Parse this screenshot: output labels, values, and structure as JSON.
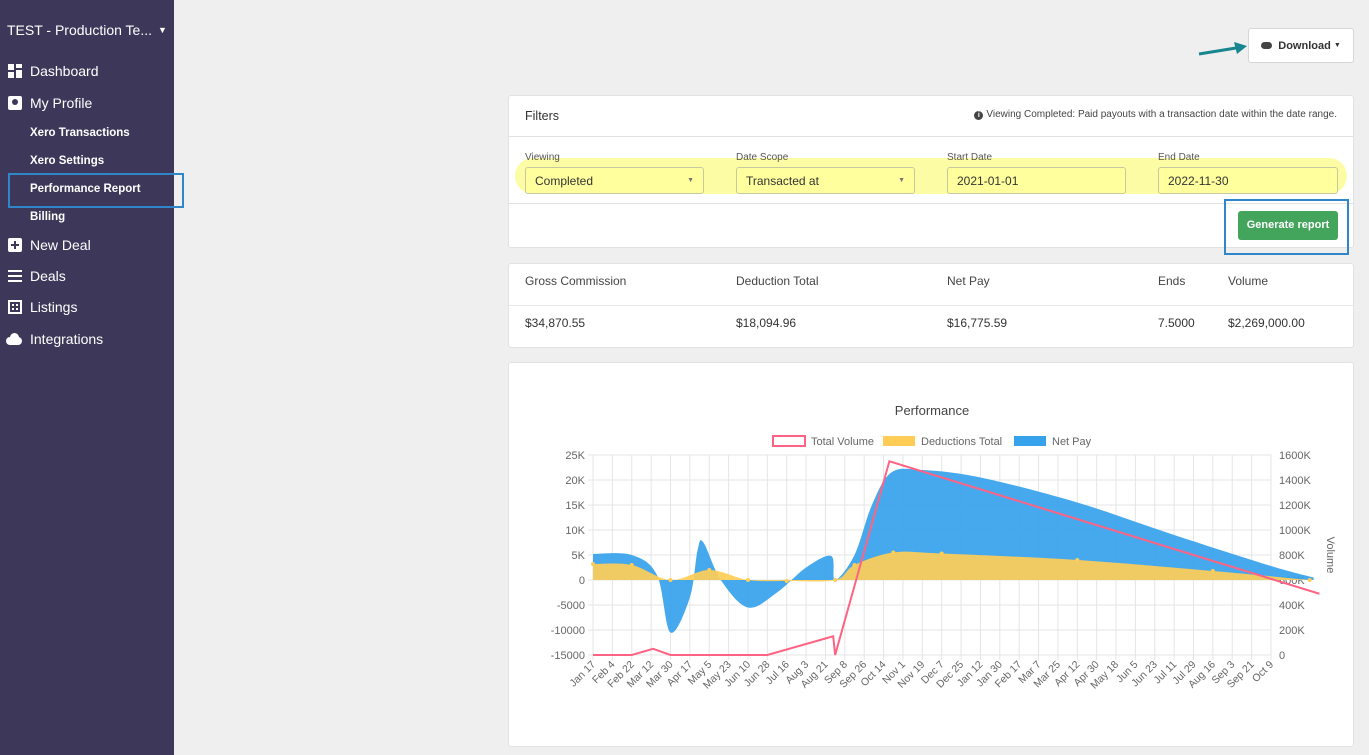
{
  "sidebar": {
    "org_name": "TEST - Production Te...",
    "nav": {
      "dashboard": "Dashboard",
      "my_profile": "My Profile",
      "xero_transactions": "Xero Transactions",
      "xero_settings": "Xero Settings",
      "performance_report": "Performance Report",
      "billing": "Billing",
      "new_deal": "New Deal",
      "deals": "Deals",
      "listings": "Listings",
      "integrations": "Integrations"
    }
  },
  "toolbar": {
    "download_label": "Download"
  },
  "filters": {
    "title": "Filters",
    "info": "Viewing Completed: Paid payouts with a transaction date within the date range.",
    "viewing": {
      "label": "Viewing",
      "value": "Completed"
    },
    "date_scope": {
      "label": "Date Scope",
      "value": "Transacted at"
    },
    "start_date": {
      "label": "Start Date",
      "value": "2021-01-01"
    },
    "end_date": {
      "label": "End Date",
      "value": "2022-11-30"
    },
    "generate_label": "Generate report",
    "highlight_color": "#fcfca0"
  },
  "summary": {
    "headers": [
      "Gross Commission",
      "Deduction Total",
      "Net Pay",
      "Ends",
      "Volume"
    ],
    "values": [
      "$34,870.55",
      "$18,094.96",
      "$16,775.59",
      "7.5000",
      "$2,269,000.00"
    ]
  },
  "colors": {
    "sidebar_bg": "#3d3859",
    "accent_blue": "#2f86c8",
    "generate_green": "#43a45c",
    "net_pay": "#36a2eb",
    "deductions": "#ffcd56",
    "total_volume": "#ff6384"
  },
  "chart_data": {
    "type": "area",
    "title": "Performance",
    "ylabel_right": "Volume",
    "y_left_ticks": [
      "25K",
      "20K",
      "15K",
      "10K",
      "5K",
      "0",
      "-5000",
      "-10000",
      "-15000"
    ],
    "y_right_ticks": [
      "1600K",
      "1400K",
      "1200K",
      "1000K",
      "800K",
      "600K",
      "400K",
      "200K",
      "0"
    ],
    "ylim_left": [
      -15000,
      25000
    ],
    "ylim_right": [
      0,
      1600000
    ],
    "x_ticks": [
      "Jan 17",
      "Feb 4",
      "Feb 22",
      "Mar 12",
      "Mar 30",
      "Apr 17",
      "May 5",
      "May 23",
      "Jun 10",
      "Jun 28",
      "Jul 16",
      "Aug 3",
      "Aug 21",
      "Sep 8",
      "Sep 26",
      "Oct 14",
      "Nov 1",
      "Nov 19",
      "Dec 7",
      "Dec 25",
      "Jan 12",
      "Jan 30",
      "Feb 17",
      "Mar 7",
      "Mar 25",
      "Apr 12",
      "Apr 30",
      "May 18",
      "Jun 5",
      "Jun 23",
      "Jul 11",
      "Jul 29",
      "Aug 16",
      "Sep 3",
      "Sep 21",
      "Oct 9"
    ],
    "legend_position": "top",
    "grid": true,
    "series": [
      {
        "name": "Total Volume",
        "axis": "right",
        "style": "line",
        "color": "#ff6384",
        "points": [
          [
            0,
            0
          ],
          [
            2,
            0
          ],
          [
            3.1,
            50000
          ],
          [
            4,
            0
          ],
          [
            9,
            0
          ],
          [
            12.4,
            150000
          ],
          [
            12.5,
            0
          ],
          [
            15.3,
            1550000
          ],
          [
            37.5,
            490000
          ]
        ]
      },
      {
        "name": "Deductions Total",
        "axis": "left",
        "style": "area",
        "color": "#ffcd56",
        "points": [
          [
            0,
            3200
          ],
          [
            2,
            3000
          ],
          [
            4,
            0
          ],
          [
            6,
            2000
          ],
          [
            8,
            0
          ],
          [
            10,
            -200
          ],
          [
            12.5,
            0
          ],
          [
            13.5,
            3000
          ],
          [
            15.5,
            5500
          ],
          [
            18,
            5300
          ],
          [
            25,
            4000
          ],
          [
            32,
            1800
          ],
          [
            37,
            0
          ]
        ]
      },
      {
        "name": "Net Pay",
        "axis": "left",
        "style": "area",
        "color": "#36a2eb",
        "points": [
          [
            0,
            5200
          ],
          [
            2,
            5000
          ],
          [
            3.3,
            1000
          ],
          [
            4,
            -10500
          ],
          [
            5,
            -3500
          ],
          [
            5.4,
            6000
          ],
          [
            5.7,
            7500
          ],
          [
            6.6,
            0
          ],
          [
            8,
            -5500
          ],
          [
            9.5,
            -2500
          ],
          [
            11,
            2500
          ],
          [
            12.3,
            4800
          ],
          [
            12.5,
            0
          ],
          [
            13.5,
            5000
          ],
          [
            14.4,
            15000
          ],
          [
            15.4,
            21500
          ],
          [
            17,
            22000
          ],
          [
            20,
            20500
          ],
          [
            25,
            15500
          ],
          [
            30,
            9000
          ],
          [
            35,
            2800
          ],
          [
            37.2,
            500
          ]
        ]
      }
    ]
  }
}
